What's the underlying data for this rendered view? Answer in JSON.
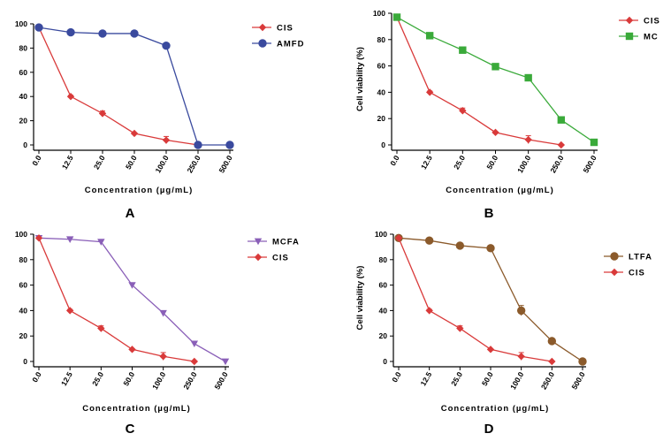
{
  "chart_data": [
    {
      "panel": "A",
      "type": "line",
      "xlabel": "Concentration (µg/mL)",
      "ylabel": "",
      "categories": [
        "0.0",
        "12.5",
        "25.0",
        "50.0",
        "100.0",
        "250.0",
        "500.0"
      ],
      "ylim": [
        0,
        100
      ],
      "yticks": [
        "0",
        "20",
        "40",
        "60",
        "80",
        "100"
      ],
      "legend_position": "top-right",
      "series": [
        {
          "name": "CIS",
          "marker": "diamond",
          "color": "#d93a3a",
          "values": [
            97,
            40,
            26,
            9.5,
            4,
            0,
            null
          ],
          "errors": [
            0,
            1,
            2,
            0.5,
            3,
            0,
            0
          ]
        },
        {
          "name": "AMFD",
          "marker": "circle",
          "color": "#3a4a9e",
          "values": [
            97,
            93,
            92,
            92,
            82,
            0,
            0
          ],
          "errors": [
            0,
            0.5,
            0.5,
            0.5,
            1,
            0,
            0
          ]
        }
      ]
    },
    {
      "panel": "B",
      "type": "line",
      "xlabel": "Concentration (µg/mL)",
      "ylabel": "Cell viability (%)",
      "categories": [
        "0.0",
        "12.5",
        "25.0",
        "50.0",
        "100.0",
        "250.0",
        "500.0"
      ],
      "ylim": [
        0,
        100
      ],
      "yticks": [
        "0",
        "20",
        "40",
        "60",
        "80",
        "100"
      ],
      "legend_position": "top-right",
      "series": [
        {
          "name": "CIS",
          "marker": "diamond",
          "color": "#d93a3a",
          "values": [
            97,
            40,
            26,
            9.5,
            4,
            0,
            null
          ],
          "errors": [
            0,
            1,
            2,
            0.5,
            3,
            0,
            0
          ]
        },
        {
          "name": "MC",
          "marker": "square",
          "color": "#3aaa3a",
          "values": [
            97,
            83,
            72,
            59.5,
            51,
            19,
            2
          ],
          "errors": [
            0,
            0.5,
            1,
            0.5,
            2,
            0.5,
            1
          ]
        }
      ]
    },
    {
      "panel": "C",
      "type": "line",
      "xlabel": "Concentration (µg/mL)",
      "ylabel": "",
      "categories": [
        "0.0",
        "12.5",
        "25.0",
        "50.0",
        "100.0",
        "250.0",
        "500.0"
      ],
      "ylim": [
        0,
        100
      ],
      "yticks": [
        "0",
        "20",
        "40",
        "60",
        "80",
        "100"
      ],
      "legend_position": "top-right",
      "series": [
        {
          "name": "MCFA",
          "marker": "triangle-down",
          "color": "#8a5fb8",
          "values": [
            97,
            96,
            94,
            60,
            38,
            14,
            0
          ],
          "errors": [
            0,
            1,
            1,
            1,
            1,
            1,
            0
          ]
        },
        {
          "name": "CIS",
          "marker": "diamond",
          "color": "#d93a3a",
          "values": [
            97,
            40,
            26,
            9.5,
            4,
            0,
            null
          ],
          "errors": [
            0,
            1,
            2,
            0.5,
            3,
            0,
            0
          ]
        }
      ]
    },
    {
      "panel": "D",
      "type": "line",
      "xlabel": "Concentration (µg/mL)",
      "ylabel": "Cell viability (%)",
      "categories": [
        "0.0",
        "12.5",
        "25.0",
        "50.0",
        "100.0",
        "250.0",
        "500.0"
      ],
      "ylim": [
        0,
        100
      ],
      "yticks": [
        "0",
        "20",
        "40",
        "60",
        "80",
        "100"
      ],
      "legend_position": "top-right",
      "series": [
        {
          "name": "LTFA",
          "marker": "circle",
          "color": "#8b5a2b",
          "values": [
            97,
            95,
            91,
            89,
            40,
            16,
            0
          ],
          "errors": [
            0,
            0.5,
            0.5,
            0.5,
            4,
            0.5,
            0
          ]
        },
        {
          "name": "CIS",
          "marker": "diamond",
          "color": "#d93a3a",
          "values": [
            97,
            40,
            26,
            9.5,
            4,
            0,
            null
          ],
          "errors": [
            0,
            1,
            2,
            0.5,
            3,
            0,
            0
          ]
        }
      ]
    }
  ]
}
